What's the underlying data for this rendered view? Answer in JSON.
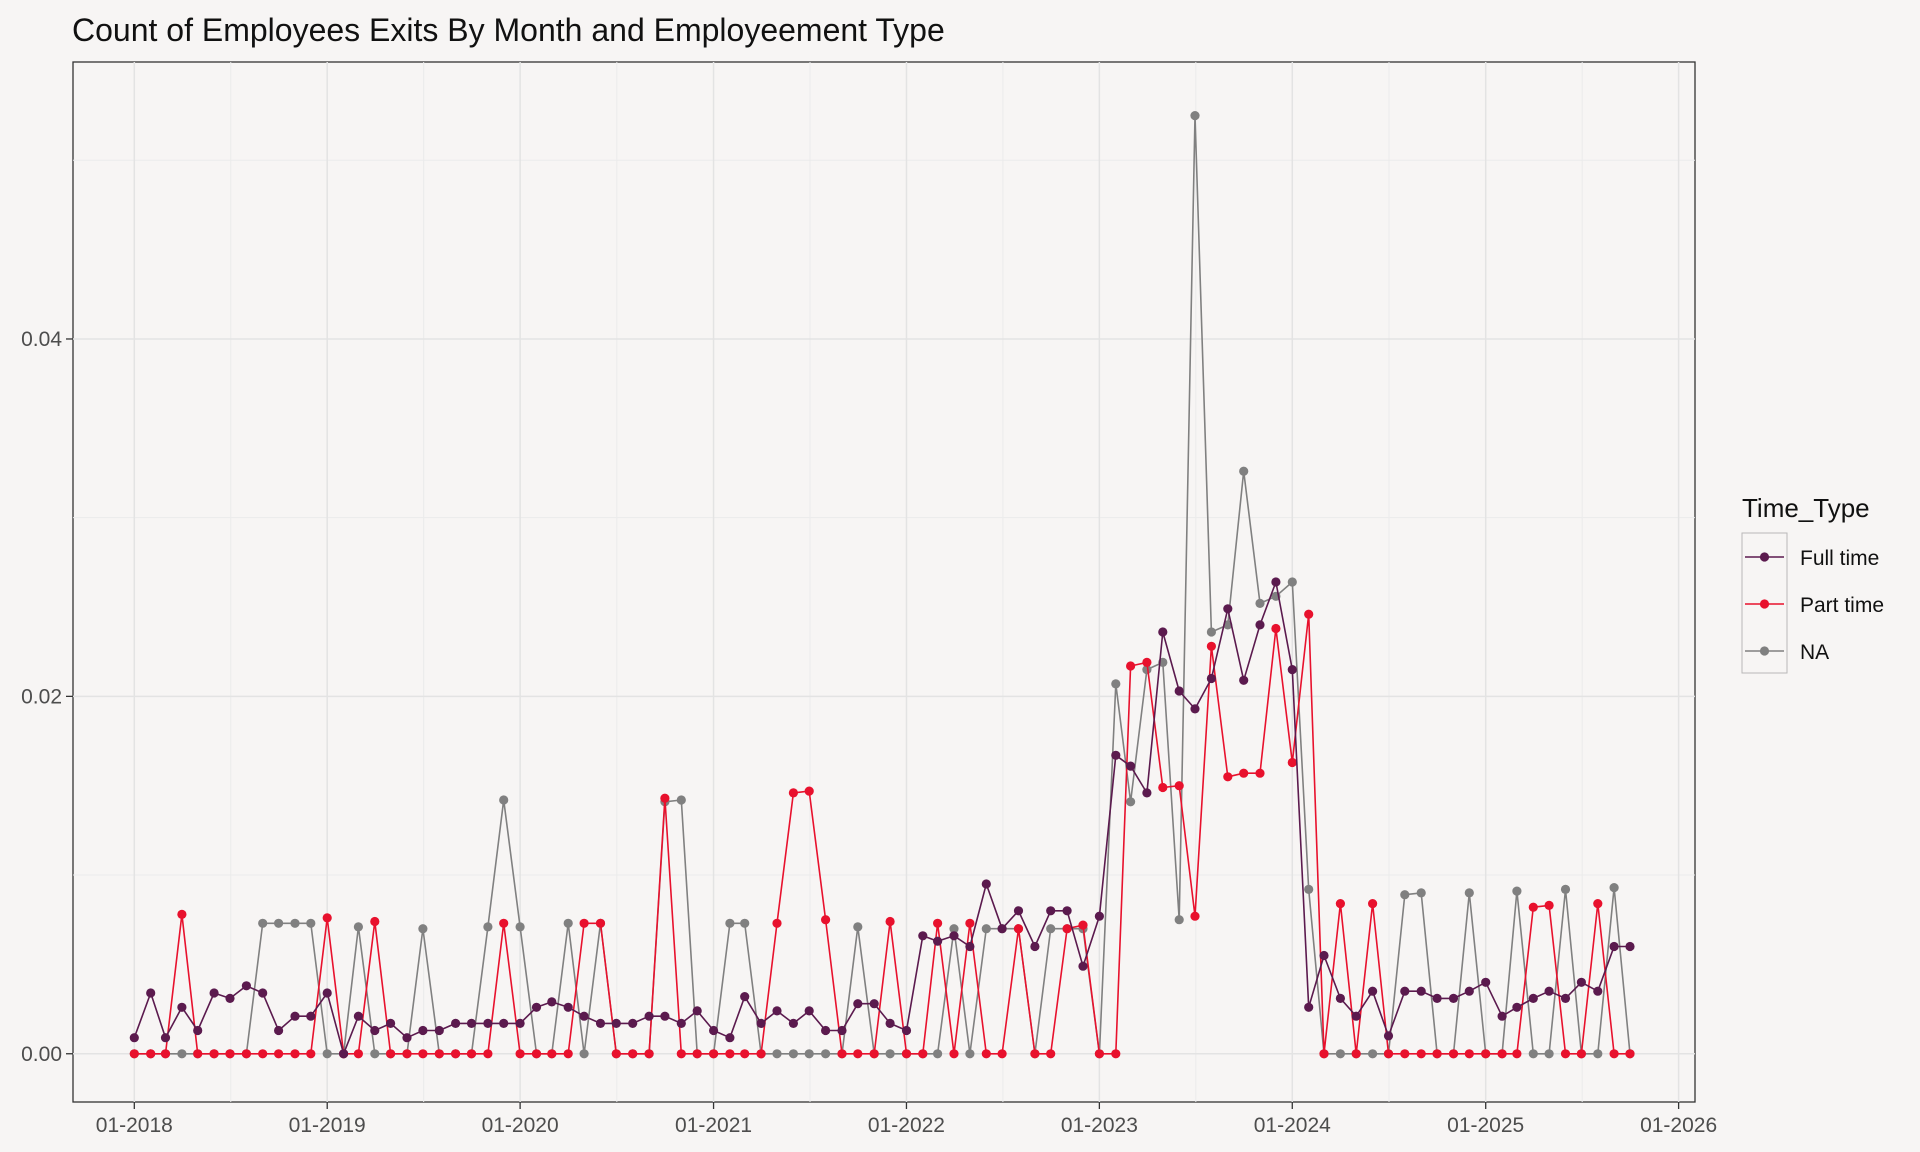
{
  "chart_data": {
    "type": "line",
    "title": "Count of Employees Exits By Month and Employeement Type",
    "xlabel": "",
    "ylabel": "",
    "x_axis": {
      "type": "date",
      "range": [
        "2017-09-07",
        "2026-02-01"
      ],
      "ticks": [
        "2018-01",
        "2019-01",
        "2020-01",
        "2021-01",
        "2022-01",
        "2023-01",
        "2024-01",
        "2025-01",
        "2026-01"
      ],
      "tick_labels": [
        "01-2018",
        "01-2019",
        "01-2020",
        "01-2021",
        "01-2022",
        "01-2023",
        "01-2024",
        "01-2025",
        "01-2026"
      ]
    },
    "y_axis": {
      "range": [
        -0.0027,
        0.0555
      ],
      "ticks": [
        0.0,
        0.02,
        0.04
      ],
      "tick_labels": [
        "0.00",
        "0.02",
        "0.04"
      ]
    },
    "grid": true,
    "legend": {
      "title": "Time_Type",
      "position": "right"
    },
    "x": [
      "2018-01",
      "2018-02",
      "2018-03",
      "2018-04",
      "2018-05",
      "2018-06",
      "2018-07",
      "2018-08",
      "2018-09",
      "2018-10",
      "2018-11",
      "2018-12",
      "2019-01",
      "2019-02",
      "2019-03",
      "2019-04",
      "2019-05",
      "2019-06",
      "2019-07",
      "2019-08",
      "2019-09",
      "2019-10",
      "2019-11",
      "2019-12",
      "2020-01",
      "2020-02",
      "2020-03",
      "2020-04",
      "2020-05",
      "2020-06",
      "2020-07",
      "2020-08",
      "2020-09",
      "2020-10",
      "2020-11",
      "2020-12",
      "2021-01",
      "2021-02",
      "2021-03",
      "2021-04",
      "2021-05",
      "2021-06",
      "2021-07",
      "2021-08",
      "2021-09",
      "2021-10",
      "2021-11",
      "2021-12",
      "2022-01",
      "2022-02",
      "2022-03",
      "2022-04",
      "2022-05",
      "2022-06",
      "2022-07",
      "2022-08",
      "2022-09",
      "2022-10",
      "2022-11",
      "2022-12",
      "2023-01",
      "2023-02",
      "2023-03",
      "2023-04",
      "2023-05",
      "2023-06",
      "2023-07",
      "2023-08",
      "2023-09",
      "2023-10",
      "2023-11",
      "2023-12",
      "2024-01",
      "2024-02",
      "2024-03",
      "2024-04",
      "2024-05",
      "2024-06",
      "2024-07",
      "2024-08",
      "2024-09",
      "2024-10",
      "2024-11",
      "2024-12",
      "2025-01",
      "2025-02",
      "2025-03",
      "2025-04",
      "2025-05",
      "2025-06",
      "2025-07",
      "2025-08",
      "2025-09",
      "2025-10"
    ],
    "series": [
      {
        "name": "Full time",
        "color": "#5b1a4e",
        "values": [
          0.0009,
          0.0034,
          0.0009,
          0.0026,
          0.0013,
          0.0034,
          0.0031,
          0.0038,
          0.0034,
          0.0013,
          0.0021,
          0.0021,
          0.0034,
          0.0,
          0.0021,
          0.0013,
          0.0017,
          0.0009,
          0.0013,
          0.0013,
          0.0017,
          0.0017,
          0.0017,
          0.0017,
          0.0017,
          0.0026,
          0.0029,
          0.0026,
          0.0021,
          0.0017,
          0.0017,
          0.0017,
          0.0021,
          0.0021,
          0.0017,
          0.0024,
          0.0013,
          0.0009,
          0.0032,
          0.0017,
          0.0024,
          0.0017,
          0.0024,
          0.0013,
          0.0013,
          0.0028,
          0.0028,
          0.0017,
          0.0013,
          0.0066,
          0.0063,
          0.0066,
          0.006,
          0.0095,
          0.007,
          0.008,
          0.006,
          0.008,
          0.008,
          0.0049,
          0.0077,
          0.0167,
          0.0161,
          0.0146,
          0.0236,
          0.0203,
          0.0193,
          0.021,
          0.0249,
          0.0209,
          0.024,
          0.0264,
          0.0215,
          0.0026,
          0.0055,
          0.0031,
          0.0021,
          0.0035,
          0.001,
          0.0035,
          0.0035,
          0.0031,
          0.0031,
          0.0035,
          0.004,
          0.0021,
          0.0026,
          0.0031,
          0.0035,
          0.0031,
          0.004,
          0.0035,
          0.006,
          0.006
        ]
      },
      {
        "name": "Part time",
        "color": "#e8112d",
        "values": [
          0.0,
          0.0,
          0.0,
          0.0078,
          0.0,
          0.0,
          0.0,
          0.0,
          0.0,
          0.0,
          0.0,
          0.0,
          0.0076,
          0.0,
          0.0,
          0.0074,
          0.0,
          0.0,
          0.0,
          0.0,
          0.0,
          0.0,
          0.0,
          0.0073,
          0.0,
          0.0,
          0.0,
          0.0,
          0.0073,
          0.0073,
          0.0,
          0.0,
          0.0,
          0.0143,
          0.0,
          0.0,
          0.0,
          0.0,
          0.0,
          0.0,
          0.0073,
          0.0146,
          0.0147,
          0.0075,
          0.0,
          0.0,
          0.0,
          0.0074,
          0.0,
          0.0,
          0.0073,
          0.0,
          0.0073,
          0.0,
          0.0,
          0.007,
          0.0,
          0.0,
          0.007,
          0.0072,
          0.0,
          0.0,
          0.0217,
          0.0219,
          0.0149,
          0.015,
          0.0077,
          0.0228,
          0.0155,
          0.0157,
          0.0157,
          0.0238,
          0.0163,
          0.0246,
          0.0,
          0.0084,
          0.0,
          0.0084,
          0.0,
          0.0,
          0.0,
          0.0,
          0.0,
          0.0,
          0.0,
          0.0,
          0.0,
          0.0082,
          0.0083,
          0.0,
          0.0,
          0.0084,
          0.0,
          0.0
        ]
      },
      {
        "name": "NA",
        "color": "#808080",
        "values": [
          0.0,
          0.0,
          0.0,
          0.0,
          0.0,
          0.0,
          0.0,
          0.0,
          0.0073,
          0.0073,
          0.0073,
          0.0073,
          0.0,
          0.0,
          0.0071,
          0.0,
          0.0,
          0.0,
          0.007,
          0.0,
          0.0,
          0.0,
          0.0071,
          0.0142,
          0.0071,
          0.0,
          0.0,
          0.0073,
          0.0,
          0.0073,
          0.0,
          0.0,
          0.0,
          0.0141,
          0.0142,
          0.0,
          0.0,
          0.0073,
          0.0073,
          0.0,
          0.0,
          0.0,
          0.0,
          0.0,
          0.0,
          0.0071,
          0.0,
          0.0,
          0.0,
          0.0,
          0.0,
          0.007,
          0.0,
          0.007,
          0.007,
          0.007,
          0.0,
          0.007,
          0.007,
          0.007,
          0.0,
          0.0207,
          0.0141,
          0.0215,
          0.0219,
          0.0075,
          0.0525,
          0.0236,
          0.024,
          0.0326,
          0.0252,
          0.0256,
          0.0264,
          0.0092,
          0.0,
          0.0,
          0.0,
          0.0,
          0.0,
          0.0089,
          0.009,
          0.0,
          0.0,
          0.009,
          0.0,
          0.0,
          0.0091,
          0.0,
          0.0,
          0.0092,
          0.0,
          0.0,
          0.0093,
          0.0
        ]
      }
    ]
  }
}
